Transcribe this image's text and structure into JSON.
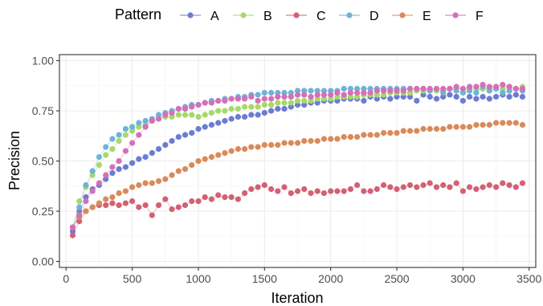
{
  "chart_data": {
    "type": "line",
    "title": "",
    "xlabel": "Iteration",
    "ylabel": "Precision",
    "xlim": [
      -50,
      3550
    ],
    "ylim": [
      -0.03,
      1.03
    ],
    "x_ticks": [
      0,
      500,
      1000,
      1500,
      2000,
      2500,
      3000,
      3500
    ],
    "x_tick_labels": [
      "0",
      "500",
      "1000",
      "1500",
      "2000",
      "2500",
      "3000",
      "3500"
    ],
    "y_ticks": [
      0,
      0.25,
      0.5,
      0.75,
      1.0
    ],
    "y_tick_labels": [
      "0.00",
      "0.25",
      "0.50",
      "0.75",
      "1.00"
    ],
    "grid": true,
    "legend": {
      "title": "Pattern",
      "position": "top"
    },
    "x": [
      50,
      100,
      150,
      200,
      250,
      300,
      350,
      400,
      450,
      500,
      550,
      600,
      650,
      700,
      750,
      800,
      850,
      900,
      950,
      1000,
      1050,
      1100,
      1150,
      1200,
      1250,
      1300,
      1350,
      1400,
      1450,
      1500,
      1550,
      1600,
      1650,
      1700,
      1750,
      1800,
      1850,
      1900,
      1950,
      2000,
      2050,
      2100,
      2150,
      2200,
      2250,
      2300,
      2350,
      2400,
      2450,
      2500,
      2550,
      2600,
      2650,
      2700,
      2750,
      2800,
      2850,
      2900,
      2950,
      3000,
      3050,
      3100,
      3150,
      3200,
      3250,
      3300,
      3350,
      3400,
      3450
    ],
    "series": [
      {
        "name": "A",
        "color": "#6C7CD2",
        "values": [
          0.15,
          0.25,
          0.32,
          0.36,
          0.38,
          0.41,
          0.44,
          0.46,
          0.47,
          0.49,
          0.51,
          0.52,
          0.54,
          0.56,
          0.58,
          0.6,
          0.62,
          0.63,
          0.64,
          0.66,
          0.67,
          0.68,
          0.69,
          0.7,
          0.71,
          0.72,
          0.72,
          0.73,
          0.73,
          0.74,
          0.75,
          0.76,
          0.76,
          0.77,
          0.78,
          0.78,
          0.79,
          0.79,
          0.8,
          0.8,
          0.8,
          0.81,
          0.81,
          0.81,
          0.8,
          0.82,
          0.81,
          0.82,
          0.81,
          0.82,
          0.82,
          0.82,
          0.8,
          0.83,
          0.82,
          0.81,
          0.82,
          0.83,
          0.82,
          0.8,
          0.82,
          0.81,
          0.82,
          0.81,
          0.82,
          0.83,
          0.82,
          0.83,
          0.82
        ]
      },
      {
        "name": "B",
        "color": "#A7D86A",
        "values": [
          0.17,
          0.3,
          0.37,
          0.43,
          0.48,
          0.53,
          0.56,
          0.6,
          0.63,
          0.65,
          0.67,
          0.68,
          0.7,
          0.71,
          0.72,
          0.72,
          0.73,
          0.73,
          0.73,
          0.72,
          0.73,
          0.74,
          0.75,
          0.75,
          0.76,
          0.76,
          0.77,
          0.77,
          0.77,
          0.78,
          0.78,
          0.79,
          0.79,
          0.79,
          0.8,
          0.8,
          0.8,
          0.81,
          0.81,
          0.81,
          0.82,
          0.82,
          0.82,
          0.82,
          0.83,
          0.83,
          0.83,
          0.83,
          0.84,
          0.84,
          0.84,
          0.84,
          0.85,
          0.85,
          0.85,
          0.85,
          0.85,
          0.86,
          0.86,
          0.86,
          0.86,
          0.86,
          0.86,
          0.86,
          0.87,
          0.86,
          0.87,
          0.86,
          0.87
        ]
      },
      {
        "name": "C",
        "color": "#D36073",
        "values": [
          0.13,
          0.2,
          0.25,
          0.27,
          0.28,
          0.28,
          0.29,
          0.28,
          0.29,
          0.3,
          0.27,
          0.28,
          0.23,
          0.28,
          0.31,
          0.26,
          0.27,
          0.28,
          0.3,
          0.3,
          0.32,
          0.31,
          0.33,
          0.32,
          0.32,
          0.31,
          0.34,
          0.36,
          0.37,
          0.38,
          0.36,
          0.35,
          0.37,
          0.34,
          0.35,
          0.36,
          0.34,
          0.35,
          0.34,
          0.35,
          0.35,
          0.35,
          0.36,
          0.38,
          0.35,
          0.35,
          0.36,
          0.38,
          0.37,
          0.36,
          0.37,
          0.38,
          0.37,
          0.38,
          0.39,
          0.37,
          0.38,
          0.37,
          0.39,
          0.35,
          0.37,
          0.36,
          0.37,
          0.38,
          0.37,
          0.39,
          0.38,
          0.37,
          0.39
        ]
      },
      {
        "name": "D",
        "color": "#6FB3D6",
        "values": [
          0.17,
          0.27,
          0.38,
          0.45,
          0.52,
          0.57,
          0.61,
          0.63,
          0.66,
          0.67,
          0.69,
          0.7,
          0.71,
          0.73,
          0.74,
          0.75,
          0.76,
          0.77,
          0.78,
          0.78,
          0.79,
          0.8,
          0.8,
          0.81,
          0.81,
          0.82,
          0.82,
          0.83,
          0.83,
          0.84,
          0.84,
          0.84,
          0.84,
          0.84,
          0.85,
          0.85,
          0.85,
          0.85,
          0.85,
          0.85,
          0.85,
          0.86,
          0.86,
          0.86,
          0.86,
          0.86,
          0.86,
          0.86,
          0.86,
          0.86,
          0.86,
          0.86,
          0.86,
          0.86,
          0.85,
          0.86,
          0.84,
          0.86,
          0.85,
          0.84,
          0.85,
          0.84,
          0.87,
          0.85,
          0.86,
          0.84,
          0.85,
          0.86,
          0.85
        ]
      },
      {
        "name": "E",
        "color": "#D98A5A",
        "values": [
          0.17,
          0.22,
          0.25,
          0.27,
          0.29,
          0.31,
          0.32,
          0.34,
          0.35,
          0.37,
          0.38,
          0.39,
          0.39,
          0.4,
          0.41,
          0.43,
          0.45,
          0.46,
          0.48,
          0.5,
          0.51,
          0.52,
          0.53,
          0.54,
          0.55,
          0.56,
          0.56,
          0.57,
          0.57,
          0.58,
          0.58,
          0.58,
          0.59,
          0.59,
          0.59,
          0.6,
          0.6,
          0.6,
          0.61,
          0.61,
          0.61,
          0.62,
          0.62,
          0.62,
          0.63,
          0.63,
          0.63,
          0.64,
          0.64,
          0.64,
          0.65,
          0.65,
          0.65,
          0.66,
          0.66,
          0.66,
          0.66,
          0.67,
          0.67,
          0.67,
          0.67,
          0.68,
          0.68,
          0.68,
          0.69,
          0.69,
          0.69,
          0.69,
          0.68
        ]
      },
      {
        "name": "F",
        "color": "#D46FB8",
        "values": [
          0.17,
          0.23,
          0.3,
          0.35,
          0.39,
          0.43,
          0.47,
          0.5,
          0.55,
          0.59,
          0.63,
          0.67,
          0.7,
          0.71,
          0.73,
          0.74,
          0.76,
          0.76,
          0.77,
          0.78,
          0.79,
          0.79,
          0.8,
          0.8,
          0.81,
          0.81,
          0.81,
          0.82,
          0.8,
          0.81,
          0.81,
          0.82,
          0.82,
          0.82,
          0.83,
          0.83,
          0.82,
          0.83,
          0.83,
          0.83,
          0.84,
          0.83,
          0.84,
          0.84,
          0.84,
          0.84,
          0.85,
          0.85,
          0.85,
          0.85,
          0.85,
          0.86,
          0.86,
          0.86,
          0.86,
          0.86,
          0.86,
          0.86,
          0.87,
          0.86,
          0.87,
          0.87,
          0.88,
          0.87,
          0.87,
          0.88,
          0.87,
          0.86,
          0.86
        ]
      }
    ]
  }
}
